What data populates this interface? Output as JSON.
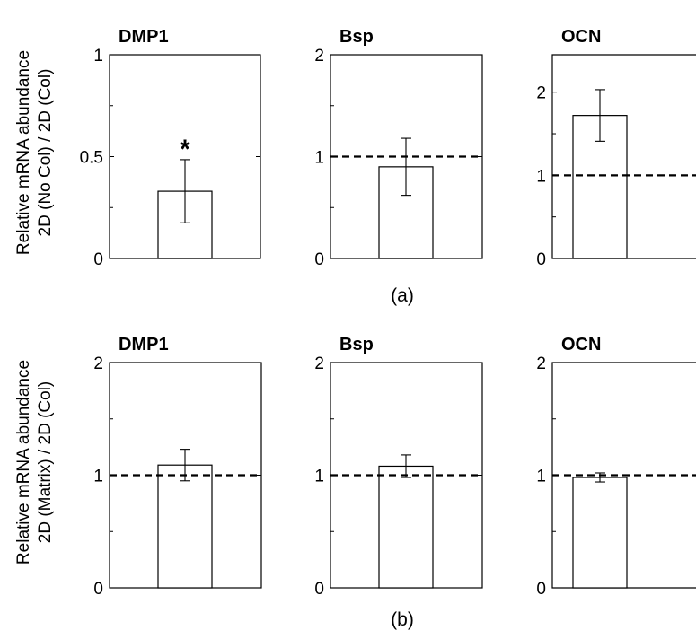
{
  "figure": {
    "panel_labels": [
      "(a)",
      "(b)"
    ],
    "row_ylabels": [
      [
        "Relative mRNA abundance",
        "2D (No Col) / 2D (Col)"
      ],
      [
        "Relative mRNA abundance",
        "2D (Matrix) / 2D (Col)"
      ]
    ]
  },
  "chart_data": [
    {
      "type": "bar",
      "row": 0,
      "title": "DMP1",
      "categories": [
        ""
      ],
      "values": [
        0.33
      ],
      "error": [
        0.155
      ],
      "ylim": [
        0,
        1
      ],
      "yticks": [
        0,
        0.5,
        1
      ],
      "ytick_labels": [
        "0",
        "0.5",
        "1"
      ],
      "reference_line": null,
      "annotation": "*"
    },
    {
      "type": "bar",
      "row": 0,
      "title": "Bsp",
      "categories": [
        ""
      ],
      "values": [
        0.9
      ],
      "error": [
        0.28
      ],
      "ylim": [
        0,
        2
      ],
      "yticks": [
        0,
        1,
        2
      ],
      "ytick_labels": [
        "0",
        "1",
        "2"
      ],
      "reference_line": 1,
      "annotation": ""
    },
    {
      "type": "bar",
      "row": 0,
      "title": "OCN",
      "categories": [
        ""
      ],
      "values": [
        1.72
      ],
      "error": [
        0.31
      ],
      "ylim": [
        0,
        2.45
      ],
      "yticks": [
        0,
        1,
        2
      ],
      "ytick_labels": [
        "0",
        "1",
        "2"
      ],
      "reference_line": 1,
      "annotation": ""
    },
    {
      "type": "bar",
      "row": 1,
      "title": "DMP1",
      "categories": [
        ""
      ],
      "values": [
        1.09
      ],
      "error": [
        0.14
      ],
      "ylim": [
        0,
        2
      ],
      "yticks": [
        0,
        1,
        2
      ],
      "ytick_labels": [
        "0",
        "1",
        "2"
      ],
      "reference_line": 1,
      "annotation": ""
    },
    {
      "type": "bar",
      "row": 1,
      "title": "Bsp",
      "categories": [
        ""
      ],
      "values": [
        1.08
      ],
      "error": [
        0.1
      ],
      "ylim": [
        0,
        2
      ],
      "yticks": [
        0,
        1,
        2
      ],
      "ytick_labels": [
        "0",
        "1",
        "2"
      ],
      "reference_line": 1,
      "annotation": ""
    },
    {
      "type": "bar",
      "row": 1,
      "title": "OCN",
      "categories": [
        ""
      ],
      "values": [
        0.98
      ],
      "error": [
        0.04
      ],
      "ylim": [
        0,
        2
      ],
      "yticks": [
        0,
        1,
        2
      ],
      "ytick_labels": [
        "0",
        "1",
        "2"
      ],
      "reference_line": 1,
      "annotation": ""
    }
  ]
}
